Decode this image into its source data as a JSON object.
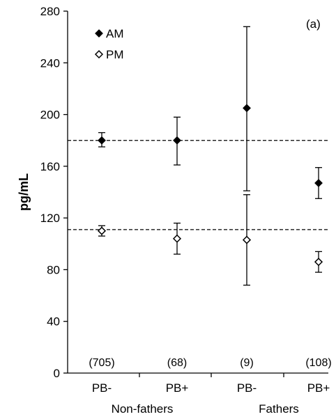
{
  "chart_data": {
    "type": "scatter",
    "panel_label": "(a)",
    "ylabel": "pg/mL",
    "ylim": [
      0,
      280
    ],
    "yticks": [
      0,
      40,
      80,
      120,
      160,
      200,
      240,
      280
    ],
    "groups": [
      "Non-fathers",
      "Fathers"
    ],
    "categories": [
      "PB-",
      "PB+",
      "PB-",
      "PB+"
    ],
    "sample_sizes": [
      "(705)",
      "(68)",
      "(9)",
      "(108)"
    ],
    "reference_lines": [
      180,
      111
    ],
    "series": [
      {
        "name": "AM",
        "marker": "filled-diamond",
        "values": [
          180,
          180,
          205,
          147
        ],
        "err_low": [
          175,
          161,
          141,
          135
        ],
        "err_high": [
          186,
          198,
          268,
          159
        ]
      },
      {
        "name": "PM",
        "marker": "open-diamond",
        "values": [
          110,
          104,
          103,
          86
        ],
        "err_low": [
          106,
          92,
          68,
          78
        ],
        "err_high": [
          114,
          116,
          138,
          94
        ]
      }
    ],
    "legend_position": "top-left",
    "grid": false
  },
  "colors": {
    "ink": "#000000",
    "background": "#ffffff"
  }
}
